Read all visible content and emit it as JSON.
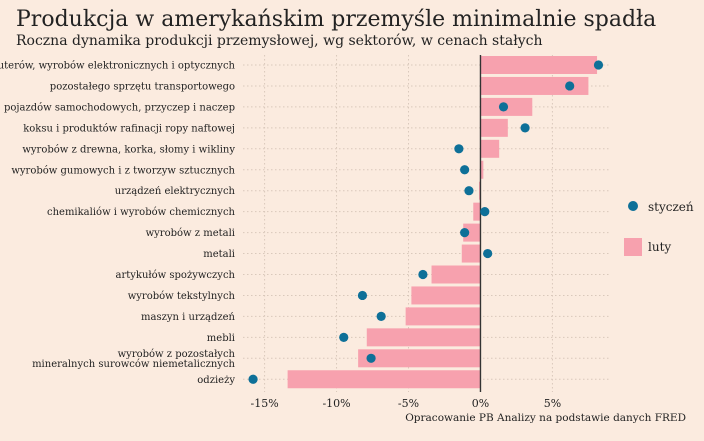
{
  "chart_data": {
    "type": "bar",
    "title": "Produkcja w amerykańskim przemyśle minimalnie spadła",
    "subtitle": "Roczna dynamika produkcji przemysłowej, wg sektorów, w cenach stałych",
    "source": "Opracowanie PB Analizy na podstawie danych FRED",
    "categories": [
      "komputerów, wyrobów elektronicznych i optycznych",
      "pozostałego sprzętu transportowego",
      "pojazdów samochodowych, przyczep i naczep",
      "koksu i produktów rafinacji ropy naftowej",
      "wyrobów z drewna, korka, słomy i wikliny",
      "wyrobów gumowych i z tworzyw sztucznych",
      "urządzeń elektrycznych",
      "chemikaliów i wyrobów chemicznych",
      "wyrobów z metali",
      "metali",
      "artykułów spożywczych",
      "wyrobów tekstylnych",
      "maszyn i urządzeń",
      "mebli",
      "wyrobów z pozostałych\nmineralnych surowców niemetalicznych",
      "odzieży"
    ],
    "series": [
      {
        "name": "luty",
        "mark": "bar",
        "color": "#f7a1ae",
        "values": [
          8.1,
          7.5,
          3.6,
          1.9,
          1.3,
          0.2,
          -0.1,
          -0.5,
          -1.2,
          -1.3,
          -3.4,
          -4.8,
          -5.2,
          -7.9,
          -8.5,
          -13.4
        ]
      },
      {
        "name": "styczeń",
        "mark": "point",
        "color": "#0e7098",
        "values": [
          8.2,
          6.2,
          1.6,
          3.1,
          -1.5,
          -1.1,
          -0.8,
          0.3,
          -1.1,
          0.5,
          -4.0,
          -8.2,
          -6.9,
          -9.5,
          -7.6,
          -15.8
        ]
      }
    ],
    "x_ticks": [
      -15,
      -10,
      -5,
      0,
      5
    ],
    "x_tick_labels": [
      "-15%",
      "-10%",
      "-5%",
      "0%",
      "5%"
    ],
    "xlim": [
      -16.5,
      9.0
    ],
    "grid": true,
    "legend_position": "right"
  }
}
